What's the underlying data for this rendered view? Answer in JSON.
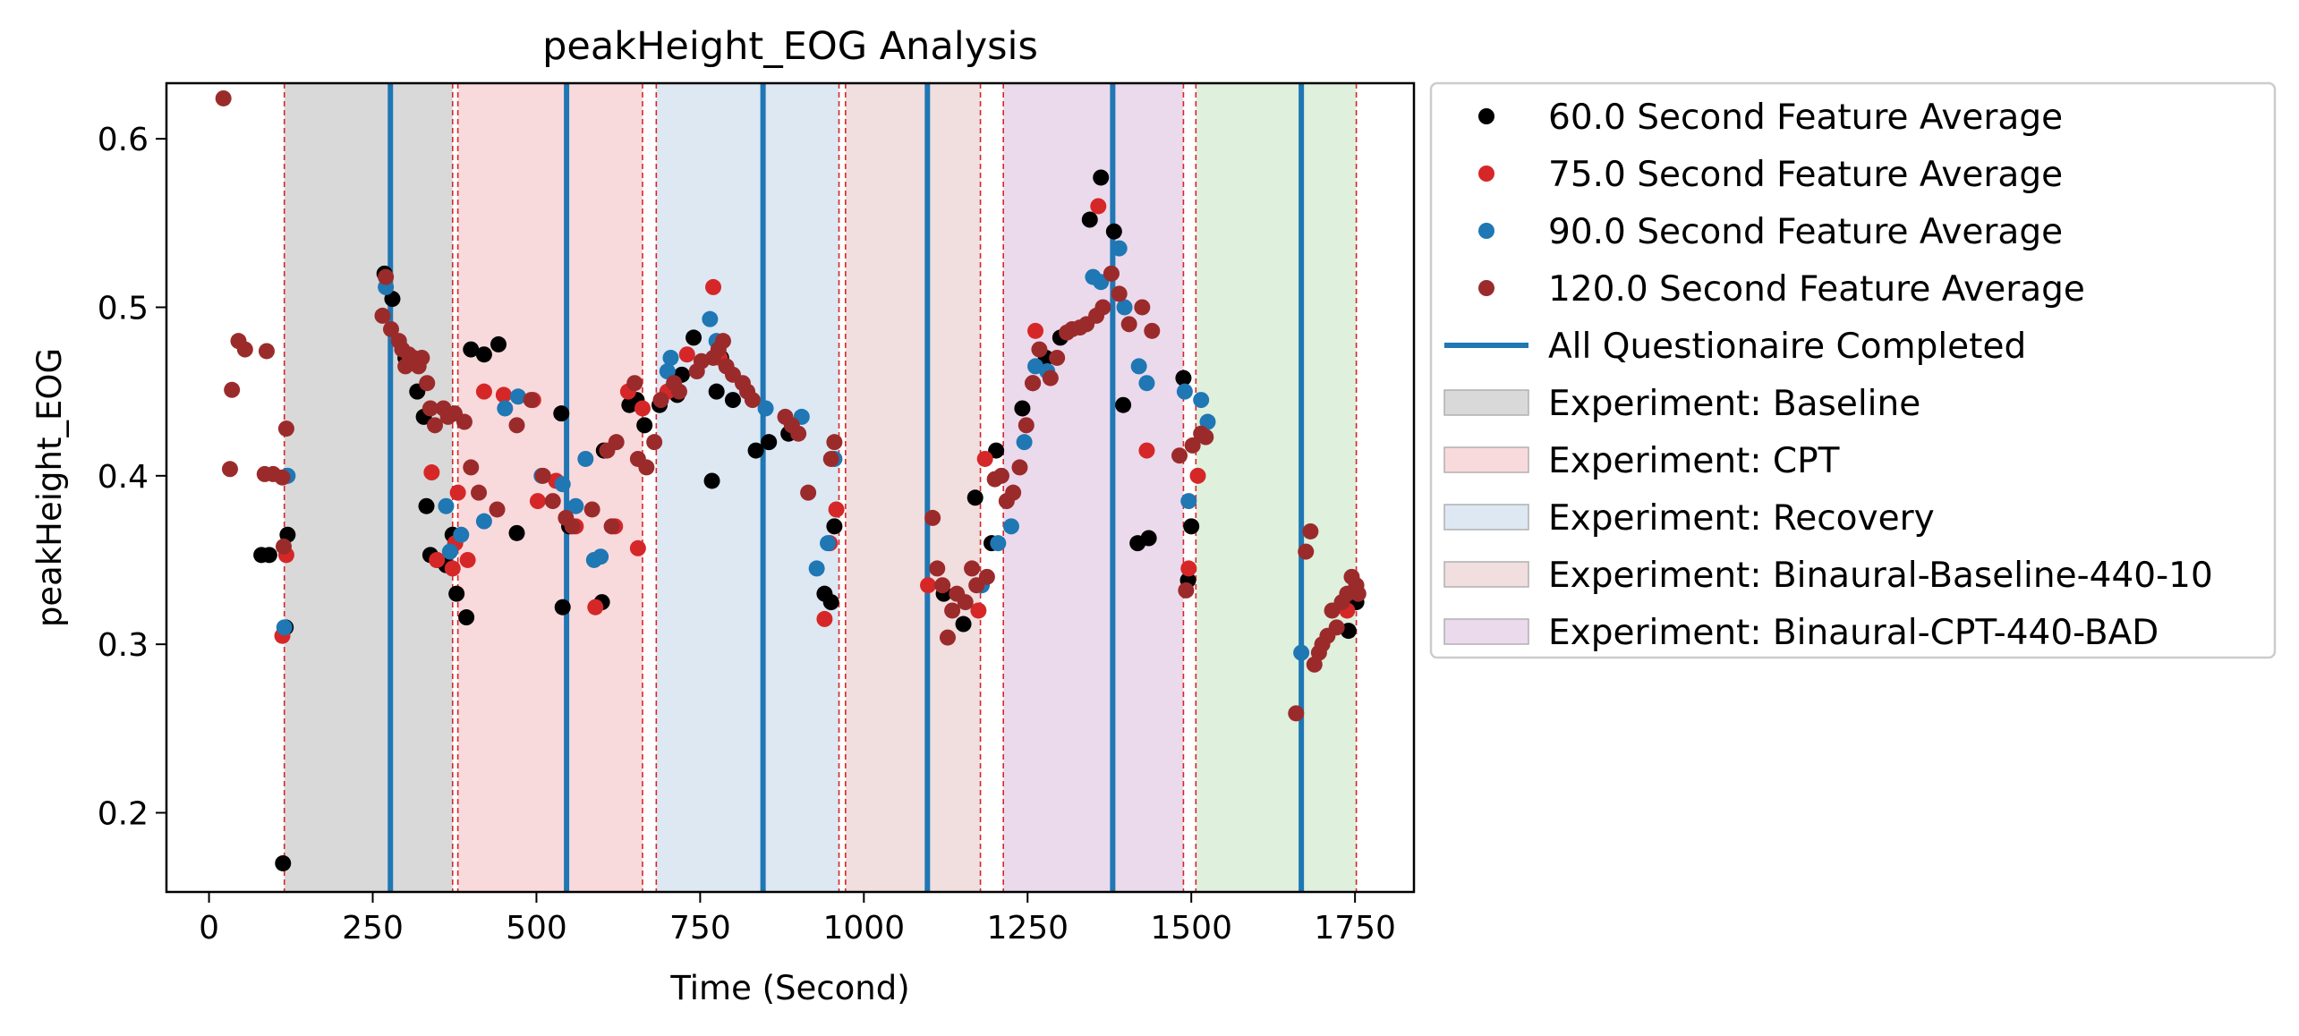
{
  "chart_data": {
    "type": "scatter",
    "title": "peakHeight_EOG Analysis",
    "xlabel": "Time (Second)",
    "ylabel": "peakHeight_EOG",
    "xlim": [
      -65,
      1840
    ],
    "ylim": [
      0.153,
      0.633
    ],
    "x_ticks": [
      0,
      250,
      500,
      750,
      1000,
      1250,
      1500,
      1750
    ],
    "y_ticks": [
      0.2,
      0.3,
      0.4,
      0.5,
      0.6
    ],
    "x_tick_labels": [
      "0",
      "250",
      "500",
      "750",
      "1000",
      "1250",
      "1500",
      "1750"
    ],
    "y_tick_labels": [
      "0.2",
      "0.3",
      "0.4",
      "0.5",
      "0.6"
    ],
    "grid": false,
    "legend_placement": "outside upper right",
    "phases": [
      {
        "name": "Experiment: Baseline",
        "start": 115,
        "end": 372,
        "color": "#d9d9d9",
        "in_legend": true
      },
      {
        "name": "Experiment: CPT",
        "start": 380,
        "end": 662,
        "color": "#f9dadc",
        "in_legend": true
      },
      {
        "name": "Experiment: Recovery",
        "start": 683,
        "end": 962,
        "color": "#dde8f3",
        "in_legend": true
      },
      {
        "name": "Experiment: Binaural-Baseline-440-10",
        "start": 972,
        "end": 1178,
        "color": "#f1dedf",
        "in_legend": true
      },
      {
        "name": "Experiment: Binaural-CPT-440-BAD",
        "start": 1213,
        "end": 1488,
        "color": "#ebdaec",
        "in_legend": true
      },
      {
        "name": "",
        "start": 1507,
        "end": 1752,
        "color": "#dff0dd",
        "in_legend": false
      }
    ],
    "phase_boundaries": [
      115,
      372,
      380,
      662,
      683,
      962,
      972,
      1178,
      1213,
      1488,
      1507,
      1752
    ],
    "questionnaire_completed": {
      "name": "All Questionaire Completed",
      "color": "#1f77b4",
      "x": [
        277,
        546,
        846,
        1097,
        1380,
        1668
      ]
    },
    "series": [
      {
        "name": "60.0 Second Feature Average",
        "color": "#000000",
        "points": [
          [
            80,
            0.353
          ],
          [
            92,
            0.353
          ],
          [
            113,
            0.17
          ],
          [
            117,
            0.31
          ],
          [
            120,
            0.365
          ],
          [
            268,
            0.52
          ],
          [
            280,
            0.505
          ],
          [
            300,
            0.47
          ],
          [
            318,
            0.45
          ],
          [
            328,
            0.435
          ],
          [
            332,
            0.382
          ],
          [
            338,
            0.353
          ],
          [
            348,
            0.35
          ],
          [
            362,
            0.347
          ],
          [
            372,
            0.365
          ],
          [
            378,
            0.33
          ],
          [
            393,
            0.316
          ],
          [
            400,
            0.475
          ],
          [
            420,
            0.472
          ],
          [
            442,
            0.478
          ],
          [
            470,
            0.366
          ],
          [
            538,
            0.437
          ],
          [
            540,
            0.322
          ],
          [
            550,
            0.37
          ],
          [
            600,
            0.325
          ],
          [
            603,
            0.415
          ],
          [
            642,
            0.442
          ],
          [
            653,
            0.445
          ],
          [
            665,
            0.43
          ],
          [
            688,
            0.442
          ],
          [
            715,
            0.448
          ],
          [
            722,
            0.46
          ],
          [
            740,
            0.482
          ],
          [
            768,
            0.397
          ],
          [
            775,
            0.45
          ],
          [
            782,
            0.47
          ],
          [
            800,
            0.445
          ],
          [
            835,
            0.415
          ],
          [
            855,
            0.42
          ],
          [
            885,
            0.425
          ],
          [
            940,
            0.33
          ],
          [
            950,
            0.325
          ],
          [
            955,
            0.37
          ],
          [
            1122,
            0.33
          ],
          [
            1152,
            0.312
          ],
          [
            1170,
            0.387
          ],
          [
            1195,
            0.36
          ],
          [
            1202,
            0.415
          ],
          [
            1242,
            0.44
          ],
          [
            1258,
            0.455
          ],
          [
            1278,
            0.47
          ],
          [
            1300,
            0.482
          ],
          [
            1345,
            0.552
          ],
          [
            1362,
            0.577
          ],
          [
            1382,
            0.545
          ],
          [
            1396,
            0.442
          ],
          [
            1418,
            0.36
          ],
          [
            1435,
            0.363
          ],
          [
            1488,
            0.458
          ],
          [
            1495,
            0.338
          ],
          [
            1500,
            0.37
          ],
          [
            1740,
            0.308
          ],
          [
            1752,
            0.325
          ]
        ]
      },
      {
        "name": "75.0 Second Feature Average",
        "color": "#d62728",
        "points": [
          [
            112,
            0.305
          ],
          [
            118,
            0.353
          ],
          [
            340,
            0.402
          ],
          [
            348,
            0.35
          ],
          [
            372,
            0.345
          ],
          [
            376,
            0.36
          ],
          [
            380,
            0.39
          ],
          [
            395,
            0.35
          ],
          [
            420,
            0.45
          ],
          [
            450,
            0.448
          ],
          [
            495,
            0.445
          ],
          [
            502,
            0.385
          ],
          [
            530,
            0.397
          ],
          [
            560,
            0.37
          ],
          [
            590,
            0.322
          ],
          [
            620,
            0.37
          ],
          [
            640,
            0.45
          ],
          [
            655,
            0.357
          ],
          [
            662,
            0.44
          ],
          [
            700,
            0.45
          ],
          [
            730,
            0.472
          ],
          [
            770,
            0.512
          ],
          [
            780,
            0.47
          ],
          [
            940,
            0.315
          ],
          [
            948,
            0.36
          ],
          [
            958,
            0.38
          ],
          [
            1098,
            0.335
          ],
          [
            1175,
            0.32
          ],
          [
            1185,
            0.41
          ],
          [
            1262,
            0.486
          ],
          [
            1358,
            0.56
          ],
          [
            1432,
            0.415
          ],
          [
            1496,
            0.345
          ],
          [
            1510,
            0.4
          ],
          [
            1738,
            0.32
          ]
        ]
      },
      {
        "name": "90.0 Second Feature Average",
        "color": "#1f77b4",
        "points": [
          [
            115,
            0.31
          ],
          [
            120,
            0.4
          ],
          [
            270,
            0.512
          ],
          [
            362,
            0.382
          ],
          [
            368,
            0.355
          ],
          [
            385,
            0.365
          ],
          [
            420,
            0.373
          ],
          [
            452,
            0.44
          ],
          [
            472,
            0.447
          ],
          [
            508,
            0.4
          ],
          [
            540,
            0.395
          ],
          [
            560,
            0.382
          ],
          [
            575,
            0.41
          ],
          [
            588,
            0.35
          ],
          [
            598,
            0.352
          ],
          [
            700,
            0.462
          ],
          [
            705,
            0.47
          ],
          [
            765,
            0.493
          ],
          [
            775,
            0.48
          ],
          [
            850,
            0.44
          ],
          [
            905,
            0.435
          ],
          [
            928,
            0.345
          ],
          [
            945,
            0.36
          ],
          [
            955,
            0.41
          ],
          [
            1180,
            0.335
          ],
          [
            1205,
            0.36
          ],
          [
            1225,
            0.37
          ],
          [
            1245,
            0.42
          ],
          [
            1262,
            0.465
          ],
          [
            1280,
            0.462
          ],
          [
            1350,
            0.518
          ],
          [
            1362,
            0.515
          ],
          [
            1378,
            0.52
          ],
          [
            1390,
            0.535
          ],
          [
            1398,
            0.5
          ],
          [
            1420,
            0.465
          ],
          [
            1432,
            0.455
          ],
          [
            1490,
            0.45
          ],
          [
            1496,
            0.385
          ],
          [
            1515,
            0.445
          ],
          [
            1525,
            0.432
          ],
          [
            1668,
            0.295
          ]
        ]
      },
      {
        "name": "120.0 Second Feature Average",
        "color": "#9b2b2b",
        "points": [
          [
            22,
            0.624
          ],
          [
            35,
            0.451
          ],
          [
            32,
            0.404
          ],
          [
            45,
            0.48
          ],
          [
            55,
            0.475
          ],
          [
            85,
            0.401
          ],
          [
            88,
            0.474
          ],
          [
            98,
            0.401
          ],
          [
            112,
            0.399
          ],
          [
            114,
            0.358
          ],
          [
            118,
            0.428
          ],
          [
            265,
            0.495
          ],
          [
            270,
            0.518
          ],
          [
            278,
            0.487
          ],
          [
            290,
            0.48
          ],
          [
            295,
            0.475
          ],
          [
            300,
            0.465
          ],
          [
            305,
            0.472
          ],
          [
            312,
            0.47
          ],
          [
            320,
            0.465
          ],
          [
            325,
            0.47
          ],
          [
            333,
            0.455
          ],
          [
            338,
            0.44
          ],
          [
            345,
            0.43
          ],
          [
            358,
            0.44
          ],
          [
            365,
            0.435
          ],
          [
            375,
            0.437
          ],
          [
            390,
            0.432
          ],
          [
            400,
            0.405
          ],
          [
            412,
            0.39
          ],
          [
            440,
            0.38
          ],
          [
            470,
            0.43
          ],
          [
            492,
            0.445
          ],
          [
            510,
            0.4
          ],
          [
            525,
            0.385
          ],
          [
            545,
            0.375
          ],
          [
            555,
            0.37
          ],
          [
            585,
            0.38
          ],
          [
            615,
            0.37
          ],
          [
            608,
            0.415
          ],
          [
            622,
            0.42
          ],
          [
            650,
            0.455
          ],
          [
            655,
            0.41
          ],
          [
            668,
            0.405
          ],
          [
            680,
            0.42
          ],
          [
            690,
            0.445
          ],
          [
            710,
            0.455
          ],
          [
            718,
            0.45
          ],
          [
            745,
            0.462
          ],
          [
            752,
            0.468
          ],
          [
            770,
            0.47
          ],
          [
            778,
            0.475
          ],
          [
            785,
            0.48
          ],
          [
            790,
            0.465
          ],
          [
            800,
            0.46
          ],
          [
            815,
            0.455
          ],
          [
            822,
            0.45
          ],
          [
            830,
            0.445
          ],
          [
            880,
            0.435
          ],
          [
            890,
            0.43
          ],
          [
            900,
            0.425
          ],
          [
            915,
            0.39
          ],
          [
            950,
            0.41
          ],
          [
            955,
            0.42
          ],
          [
            1105,
            0.375
          ],
          [
            1112,
            0.345
          ],
          [
            1120,
            0.335
          ],
          [
            1128,
            0.304
          ],
          [
            1135,
            0.32
          ],
          [
            1142,
            0.33
          ],
          [
            1155,
            0.325
          ],
          [
            1165,
            0.345
          ],
          [
            1172,
            0.335
          ],
          [
            1188,
            0.34
          ],
          [
            1200,
            0.398
          ],
          [
            1210,
            0.4
          ],
          [
            1218,
            0.385
          ],
          [
            1228,
            0.39
          ],
          [
            1238,
            0.405
          ],
          [
            1248,
            0.43
          ],
          [
            1258,
            0.455
          ],
          [
            1268,
            0.475
          ],
          [
            1285,
            0.458
          ],
          [
            1295,
            0.47
          ],
          [
            1310,
            0.485
          ],
          [
            1318,
            0.487
          ],
          [
            1330,
            0.488
          ],
          [
            1340,
            0.49
          ],
          [
            1355,
            0.495
          ],
          [
            1365,
            0.5
          ],
          [
            1378,
            0.52
          ],
          [
            1390,
            0.508
          ],
          [
            1405,
            0.49
          ],
          [
            1425,
            0.5
          ],
          [
            1440,
            0.486
          ],
          [
            1482,
            0.412
          ],
          [
            1492,
            0.332
          ],
          [
            1502,
            0.418
          ],
          [
            1515,
            0.425
          ],
          [
            1522,
            0.423
          ],
          [
            1660,
            0.259
          ],
          [
            1675,
            0.355
          ],
          [
            1682,
            0.367
          ],
          [
            1688,
            0.288
          ],
          [
            1695,
            0.295
          ],
          [
            1700,
            0.3
          ],
          [
            1708,
            0.305
          ],
          [
            1715,
            0.32
          ],
          [
            1722,
            0.31
          ],
          [
            1730,
            0.325
          ],
          [
            1738,
            0.33
          ],
          [
            1745,
            0.34
          ],
          [
            1752,
            0.335
          ],
          [
            1755,
            0.33
          ]
        ]
      }
    ]
  }
}
